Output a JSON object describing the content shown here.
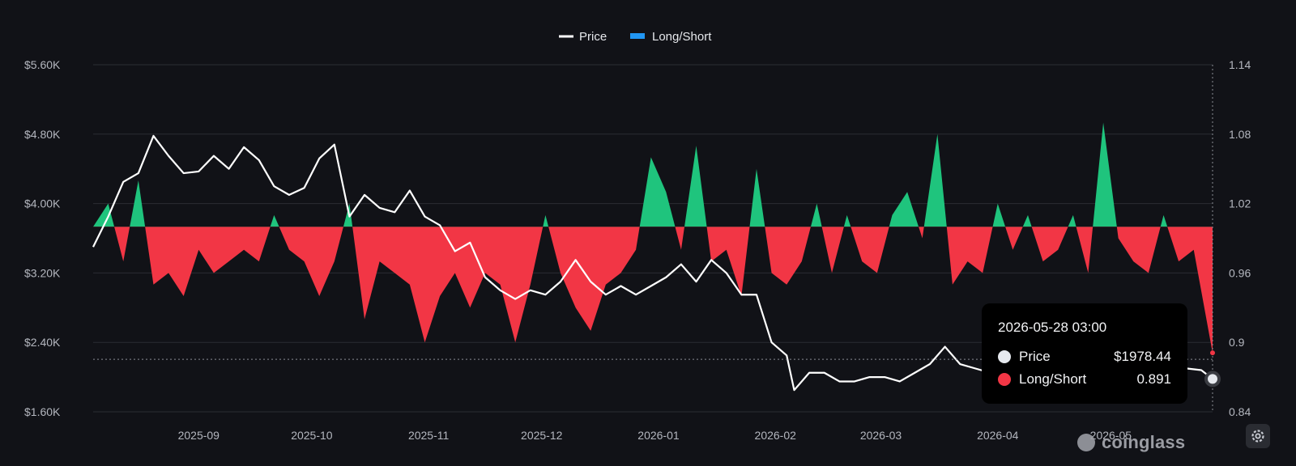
{
  "legend": {
    "price_label": "Price",
    "ls_label": "Long/Short"
  },
  "colors": {
    "price": "#ffffff",
    "positive": "#1fc47d",
    "negative": "#f23645",
    "legend_ls": "#2196f3",
    "grid": "#2b2d33"
  },
  "tooltip": {
    "date": "2026-05-28 03:00",
    "rows": [
      {
        "label": "Price",
        "value": "$1978.44",
        "color": "#e6e9ee"
      },
      {
        "label": "Long/Short",
        "value": "0.891",
        "color": "#f23645"
      }
    ]
  },
  "watermark": {
    "text": "coinglass"
  },
  "icons": {
    "settings": "gear-icon",
    "logo": "coinglass-logo-icon"
  },
  "chart_data": {
    "type": "line",
    "x_tick_labels": [
      "2025-09",
      "2025-10",
      "2025-11",
      "2025-12",
      "2026-01",
      "2026-02",
      "2026-03",
      "2026-04",
      "2026-05"
    ],
    "left_axis": {
      "ticks": [
        "$5.60K",
        "$4.80K",
        "$4.00K",
        "$3.20K",
        "$2.40K",
        "$1.60K"
      ],
      "range": [
        1600,
        5600
      ]
    },
    "right_axis": {
      "ticks": [
        "1.14",
        "1.08",
        "1.02",
        "0.96",
        "0.9",
        "0.84"
      ],
      "range": [
        0.84,
        1.14
      ],
      "baseline": 1.0
    },
    "x_range": [
      "2025-08-04",
      "2026-05-28"
    ],
    "series": [
      {
        "name": "Price",
        "axis": "left",
        "points": [
          [
            "2025-08-04",
            3500
          ],
          [
            "2025-08-08",
            3850
          ],
          [
            "2025-08-12",
            4250
          ],
          [
            "2025-08-16",
            4350
          ],
          [
            "2025-08-20",
            4780
          ],
          [
            "2025-08-24",
            4550
          ],
          [
            "2025-08-28",
            4350
          ],
          [
            "2025-09-01",
            4370
          ],
          [
            "2025-09-05",
            4550
          ],
          [
            "2025-09-09",
            4400
          ],
          [
            "2025-09-13",
            4650
          ],
          [
            "2025-09-17",
            4500
          ],
          [
            "2025-09-21",
            4200
          ],
          [
            "2025-09-25",
            4100
          ],
          [
            "2025-09-29",
            4180
          ],
          [
            "2025-10-03",
            4520
          ],
          [
            "2025-10-07",
            4680
          ],
          [
            "2025-10-11",
            3850
          ],
          [
            "2025-10-15",
            4100
          ],
          [
            "2025-10-19",
            3950
          ],
          [
            "2025-10-23",
            3900
          ],
          [
            "2025-10-27",
            4150
          ],
          [
            "2025-10-31",
            3850
          ],
          [
            "2025-11-04",
            3750
          ],
          [
            "2025-11-08",
            3450
          ],
          [
            "2025-11-12",
            3550
          ],
          [
            "2025-11-16",
            3150
          ],
          [
            "2025-11-20",
            3000
          ],
          [
            "2025-11-24",
            2900
          ],
          [
            "2025-11-28",
            3000
          ],
          [
            "2025-12-02",
            2950
          ],
          [
            "2025-12-06",
            3100
          ],
          [
            "2025-12-10",
            3350
          ],
          [
            "2025-12-14",
            3100
          ],
          [
            "2025-12-18",
            2950
          ],
          [
            "2025-12-22",
            3050
          ],
          [
            "2025-12-26",
            2950
          ],
          [
            "2025-12-30",
            3050
          ],
          [
            "2026-01-03",
            3150
          ],
          [
            "2026-01-07",
            3300
          ],
          [
            "2026-01-11",
            3100
          ],
          [
            "2026-01-15",
            3350
          ],
          [
            "2026-01-19",
            3200
          ],
          [
            "2026-01-23",
            2950
          ],
          [
            "2026-01-27",
            2950
          ],
          [
            "2026-01-31",
            2400
          ],
          [
            "2026-02-04",
            2250
          ],
          [
            "2026-02-06",
            1850
          ],
          [
            "2026-02-10",
            2050
          ],
          [
            "2026-02-14",
            2050
          ],
          [
            "2026-02-18",
            1950
          ],
          [
            "2026-02-22",
            1950
          ],
          [
            "2026-02-26",
            2000
          ],
          [
            "2026-03-02",
            2000
          ],
          [
            "2026-03-06",
            1950
          ],
          [
            "2026-03-10",
            2050
          ],
          [
            "2026-03-14",
            2150
          ],
          [
            "2026-03-18",
            2350
          ],
          [
            "2026-03-22",
            2150
          ],
          [
            "2026-03-26",
            2100
          ],
          [
            "2026-03-30",
            2050
          ],
          [
            "2026-04-03",
            2000
          ],
          [
            "2026-04-07",
            2100
          ],
          [
            "2026-04-11",
            2100
          ],
          [
            "2026-04-15",
            2150
          ],
          [
            "2026-04-19",
            2200
          ],
          [
            "2026-04-23",
            2150
          ],
          [
            "2026-04-27",
            2100
          ],
          [
            "2026-05-01",
            2150
          ],
          [
            "2026-05-05",
            2150
          ],
          [
            "2026-05-09",
            2100
          ],
          [
            "2026-05-13",
            2100
          ],
          [
            "2026-05-17",
            2150
          ],
          [
            "2026-05-21",
            2100
          ],
          [
            "2026-05-25",
            2080
          ],
          [
            "2026-05-28",
            1978.44
          ]
        ]
      },
      {
        "name": "Long/Short",
        "axis": "right",
        "type": "area",
        "points": [
          [
            "2025-08-04",
            1.0
          ],
          [
            "2025-08-08",
            1.02
          ],
          [
            "2025-08-12",
            0.97
          ],
          [
            "2025-08-16",
            1.04
          ],
          [
            "2025-08-20",
            0.95
          ],
          [
            "2025-08-24",
            0.96
          ],
          [
            "2025-08-28",
            0.94
          ],
          [
            "2025-09-01",
            0.98
          ],
          [
            "2025-09-05",
            0.96
          ],
          [
            "2025-09-09",
            0.97
          ],
          [
            "2025-09-13",
            0.98
          ],
          [
            "2025-09-17",
            0.97
          ],
          [
            "2025-09-21",
            1.01
          ],
          [
            "2025-09-25",
            0.98
          ],
          [
            "2025-09-29",
            0.97
          ],
          [
            "2025-10-03",
            0.94
          ],
          [
            "2025-10-07",
            0.97
          ],
          [
            "2025-10-11",
            1.02
          ],
          [
            "2025-10-15",
            0.92
          ],
          [
            "2025-10-19",
            0.97
          ],
          [
            "2025-10-23",
            0.96
          ],
          [
            "2025-10-27",
            0.95
          ],
          [
            "2025-10-31",
            0.9
          ],
          [
            "2025-11-04",
            0.94
          ],
          [
            "2025-11-08",
            0.96
          ],
          [
            "2025-11-12",
            0.93
          ],
          [
            "2025-11-16",
            0.96
          ],
          [
            "2025-11-20",
            0.95
          ],
          [
            "2025-11-24",
            0.9
          ],
          [
            "2025-11-28",
            0.95
          ],
          [
            "2025-12-02",
            1.01
          ],
          [
            "2025-12-06",
            0.96
          ],
          [
            "2025-12-10",
            0.93
          ],
          [
            "2025-12-14",
            0.91
          ],
          [
            "2025-12-18",
            0.95
          ],
          [
            "2025-12-22",
            0.96
          ],
          [
            "2025-12-26",
            0.98
          ],
          [
            "2025-12-30",
            1.06
          ],
          [
            "2026-01-03",
            1.03
          ],
          [
            "2026-01-07",
            0.98
          ],
          [
            "2026-01-11",
            1.07
          ],
          [
            "2026-01-15",
            0.97
          ],
          [
            "2026-01-19",
            0.98
          ],
          [
            "2026-01-23",
            0.94
          ],
          [
            "2026-01-27",
            1.05
          ],
          [
            "2026-01-31",
            0.96
          ],
          [
            "2026-02-04",
            0.95
          ],
          [
            "2026-02-08",
            0.97
          ],
          [
            "2026-02-12",
            1.02
          ],
          [
            "2026-02-16",
            0.96
          ],
          [
            "2026-02-20",
            1.01
          ],
          [
            "2026-02-24",
            0.97
          ],
          [
            "2026-02-28",
            0.96
          ],
          [
            "2026-03-04",
            1.01
          ],
          [
            "2026-03-08",
            1.03
          ],
          [
            "2026-03-12",
            0.99
          ],
          [
            "2026-03-16",
            1.08
          ],
          [
            "2026-03-20",
            0.95
          ],
          [
            "2026-03-24",
            0.97
          ],
          [
            "2026-03-28",
            0.96
          ],
          [
            "2026-04-01",
            1.02
          ],
          [
            "2026-04-05",
            0.98
          ],
          [
            "2026-04-09",
            1.01
          ],
          [
            "2026-04-13",
            0.97
          ],
          [
            "2026-04-17",
            0.98
          ],
          [
            "2026-04-21",
            1.01
          ],
          [
            "2026-04-25",
            0.96
          ],
          [
            "2026-04-29",
            1.09
          ],
          [
            "2026-05-03",
            0.99
          ],
          [
            "2026-05-07",
            0.97
          ],
          [
            "2026-05-11",
            0.96
          ],
          [
            "2026-05-15",
            1.01
          ],
          [
            "2026-05-19",
            0.97
          ],
          [
            "2026-05-23",
            0.98
          ],
          [
            "2026-05-28",
            0.891
          ]
        ]
      }
    ]
  }
}
